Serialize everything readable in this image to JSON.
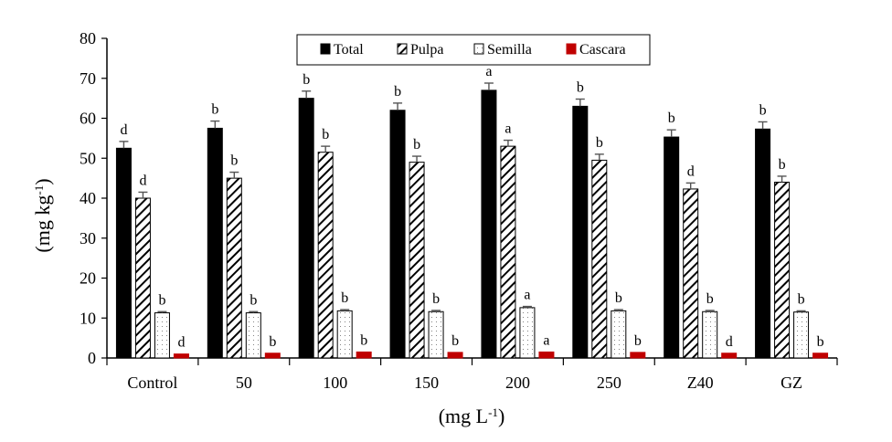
{
  "chart_data": {
    "type": "bar",
    "categories": [
      "Control",
      "50",
      "100",
      "150",
      "200",
      "250",
      "Z40",
      "GZ"
    ],
    "series": [
      {
        "name": "Total",
        "color": "#000000",
        "pattern": "solid",
        "values": [
          52.5,
          57.5,
          65,
          62,
          67,
          63,
          55.3,
          57.3
        ],
        "errors": [
          1.7,
          1.8,
          1.8,
          1.8,
          1.8,
          1.8,
          1.8,
          1.8
        ],
        "labels": [
          "d",
          "b",
          "b",
          "b",
          "a",
          "b",
          "b",
          "b"
        ]
      },
      {
        "name": "Pulpa",
        "color": "#000000",
        "pattern": "diagonal-hatch",
        "values": [
          40,
          45,
          51.5,
          49,
          53,
          49.5,
          42.3,
          44
        ],
        "errors": [
          1.5,
          1.5,
          1.5,
          1.5,
          1.5,
          1.5,
          1.5,
          1.5
        ],
        "labels": [
          "d",
          "b",
          "b",
          "b",
          "a",
          "b",
          "d",
          "b"
        ]
      },
      {
        "name": "Semilla",
        "color": "#ffffff",
        "pattern": "dots",
        "values": [
          11.3,
          11.3,
          11.8,
          11.6,
          12.6,
          11.8,
          11.6,
          11.5
        ],
        "errors": [
          0.3,
          0.3,
          0.3,
          0.3,
          0.3,
          0.3,
          0.3,
          0.3
        ],
        "labels": [
          "b",
          "b",
          "b",
          "b",
          "a",
          "b",
          "b",
          "b"
        ]
      },
      {
        "name": "Cascara",
        "color": "#c00000",
        "pattern": "solid",
        "values": [
          1.0,
          1.2,
          1.5,
          1.4,
          1.5,
          1.4,
          1.2,
          1.2
        ],
        "errors": [
          0,
          0,
          0,
          0,
          0,
          0,
          0,
          0
        ],
        "labels": [
          "d",
          "b",
          "b",
          "b",
          "a",
          "b",
          "d",
          "b"
        ]
      }
    ],
    "xlabel": "(mg L",
    "xlabel_sup": "-1",
    "xlabel_end": ")",
    "ylabel": "(mg kg",
    "ylabel_sup": "-1",
    "ylabel_end": ")",
    "ylim": [
      0,
      80
    ],
    "yticks": [
      "0",
      "10",
      "20",
      "30",
      "40",
      "50",
      "60",
      "70",
      "80"
    ],
    "grid": false,
    "legend": "top-center"
  }
}
